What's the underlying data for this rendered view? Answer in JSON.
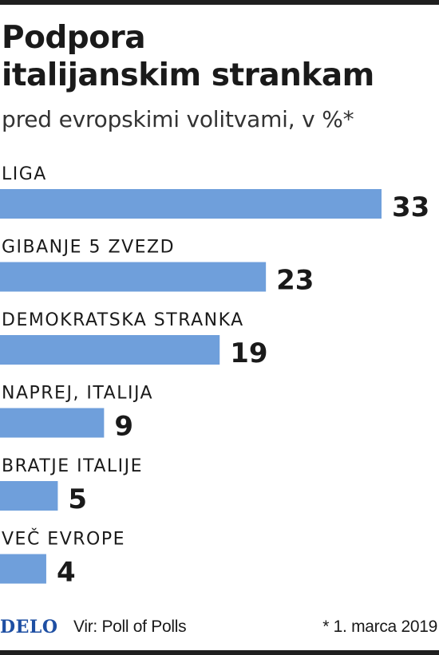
{
  "header": {
    "title_line1": "Podpora",
    "title_line2": "italijanskim strankam",
    "subtitle": "pred evropskimi volitvami, v %*"
  },
  "footer": {
    "logo": "DELO",
    "source": "Vir: Poll of Polls",
    "note": "* 1. marca 2019"
  },
  "colors": {
    "bar": "#6f9fdb",
    "text": "#1a1a1a",
    "logo": "#1e4fa3"
  },
  "chart_data": {
    "type": "bar",
    "orientation": "horizontal",
    "title": "Podpora italijanskim strankam",
    "subtitle": "pred evropskimi volitvami, v %*",
    "categories": [
      "LIGA",
      "GIBANJE 5 ZVEZD",
      "DEMOKRATSKA STRANKA",
      "NAPREJ, ITALIJA",
      "BRATJE ITALIJE",
      "VEČ EVROPE"
    ],
    "values": [
      33,
      23,
      19,
      9,
      5,
      4
    ],
    "data_labels": [
      "33",
      "23",
      "19",
      "9",
      "5",
      "4"
    ],
    "xlabel": "",
    "ylabel": "",
    "grid": false,
    "legend": "none"
  }
}
